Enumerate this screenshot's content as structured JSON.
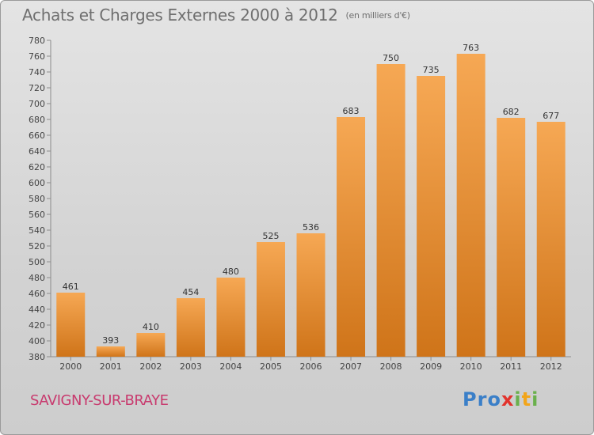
{
  "header": {
    "title": "Achats et Charges Externes 2000 à 2012",
    "unit": "(en milliers d'€)"
  },
  "footer": {
    "place": "SAVIGNY-SUR-BRAYE",
    "logo_letters": [
      "P",
      "r",
      "o",
      "x",
      "i",
      "t",
      "i"
    ]
  },
  "colors": {
    "bar_light": "#f6a854",
    "bar_dark": "#cf7419",
    "place_text": "#c83a6e",
    "logo": [
      "#3a7fc8",
      "#3a7fc8",
      "#3a7fc8",
      "#e2332c",
      "#6ab04c",
      "#f2a51a",
      "#6ab04c"
    ]
  },
  "chart_data": {
    "type": "bar",
    "title": "Achats et Charges Externes 2000 à 2012",
    "subtitle": "(en milliers d'€)",
    "categories": [
      "2000",
      "2001",
      "2002",
      "2003",
      "2004",
      "2005",
      "2006",
      "2007",
      "2008",
      "2009",
      "2010",
      "2011",
      "2012"
    ],
    "values": [
      461,
      393,
      410,
      454,
      480,
      525,
      536,
      683,
      750,
      735,
      763,
      682,
      677
    ],
    "ylim": [
      380,
      780
    ],
    "ytick_step": 20,
    "grid": false,
    "legend": "none"
  }
}
